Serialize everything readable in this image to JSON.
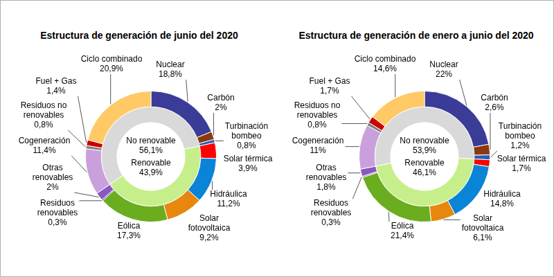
{
  "chart_data": [
    {
      "type": "doughnut",
      "title": "Estructura de generación de junio del 2020",
      "categories": [
        "Nuclear",
        "Carbón",
        "Turbinación bombeo",
        "Solar térmica",
        "Hidráulica",
        "Solar fotovoltaica",
        "Eólica",
        "Residuos renovables",
        "Otras renovables",
        "Cogeneración",
        "Residuos no renovables",
        "Fuel + Gas",
        "Ciclo combinado"
      ],
      "values": [
        18.8,
        2,
        0.8,
        3.9,
        11.2,
        9.2,
        17.3,
        0.3,
        2,
        11.4,
        0.8,
        1.4,
        20.9
      ],
      "value_labels": [
        "18,8%",
        "2%",
        "0,8%",
        "3,9%",
        "11,2%",
        "9,2%",
        "17,3%",
        "0,3%",
        "2%",
        "11,4%",
        "0,8%",
        "1,4%",
        "20,9%"
      ],
      "colors": [
        "#3b3b98",
        "#8b3a0f",
        "#1f5fbf",
        "#ff0000",
        "#0a84d6",
        "#e8870e",
        "#6aad1e",
        "#5b3a8a",
        "#8a57c0",
        "#c9a0dc",
        "#7f7f7f",
        "#cc0000",
        "#ffc966"
      ],
      "groups": [
        "No renovable",
        "No renovable",
        "No renovable",
        "Renovable",
        "Renovable",
        "Renovable",
        "Renovable",
        "Renovable",
        "Renovable",
        "No renovable",
        "No renovable",
        "No renovable",
        "No renovable"
      ],
      "data_labels": true,
      "inner": {
        "categories": [
          "No renovable",
          "Renovable"
        ],
        "values": [
          56.1,
          43.9
        ],
        "value_labels": [
          "56,1%",
          "43,9%"
        ],
        "colors": [
          "#d9d9d9",
          "#c6ef8c"
        ]
      }
    },
    {
      "type": "doughnut",
      "title": "Estructura de generación de enero a junio del 2020",
      "categories": [
        "Nuclear",
        "Carbón",
        "Turbinación bombeo",
        "Solar térmica",
        "Hidráulica",
        "Solar fotovoltaica",
        "Eólica",
        "Residuos renovables",
        "Otras renovables",
        "Cogeneración",
        "Residuos no renovables",
        "Fuel + Gas",
        "Ciclo combinado"
      ],
      "values": [
        22,
        2.6,
        1.2,
        1.7,
        14.8,
        6.1,
        21.4,
        0.3,
        1.8,
        11,
        0.8,
        1.7,
        14.6
      ],
      "value_labels": [
        "22%",
        "2,6%",
        "1,2%",
        "1,7%",
        "14,8%",
        "6,1%",
        "21,4%",
        "0,3%",
        "1,8%",
        "11%",
        "0,8%",
        "1,7%",
        "14,6%"
      ],
      "colors": [
        "#3b3b98",
        "#8b3a0f",
        "#1f5fbf",
        "#ff0000",
        "#0a84d6",
        "#e8870e",
        "#6aad1e",
        "#5b3a8a",
        "#8a57c0",
        "#c9a0dc",
        "#7f7f7f",
        "#cc0000",
        "#ffc966"
      ],
      "groups": [
        "No renovable",
        "No renovable",
        "No renovable",
        "Renovable",
        "Renovable",
        "Renovable",
        "Renovable",
        "Renovable",
        "Renovable",
        "No renovable",
        "No renovable",
        "No renovable",
        "No renovable"
      ],
      "data_labels": true,
      "inner": {
        "categories": [
          "No renovable",
          "Renovable"
        ],
        "values": [
          53.9,
          46.1
        ],
        "value_labels": [
          "53,9%",
          "46,1%"
        ],
        "colors": [
          "#d9d9d9",
          "#c6ef8c"
        ]
      }
    }
  ]
}
